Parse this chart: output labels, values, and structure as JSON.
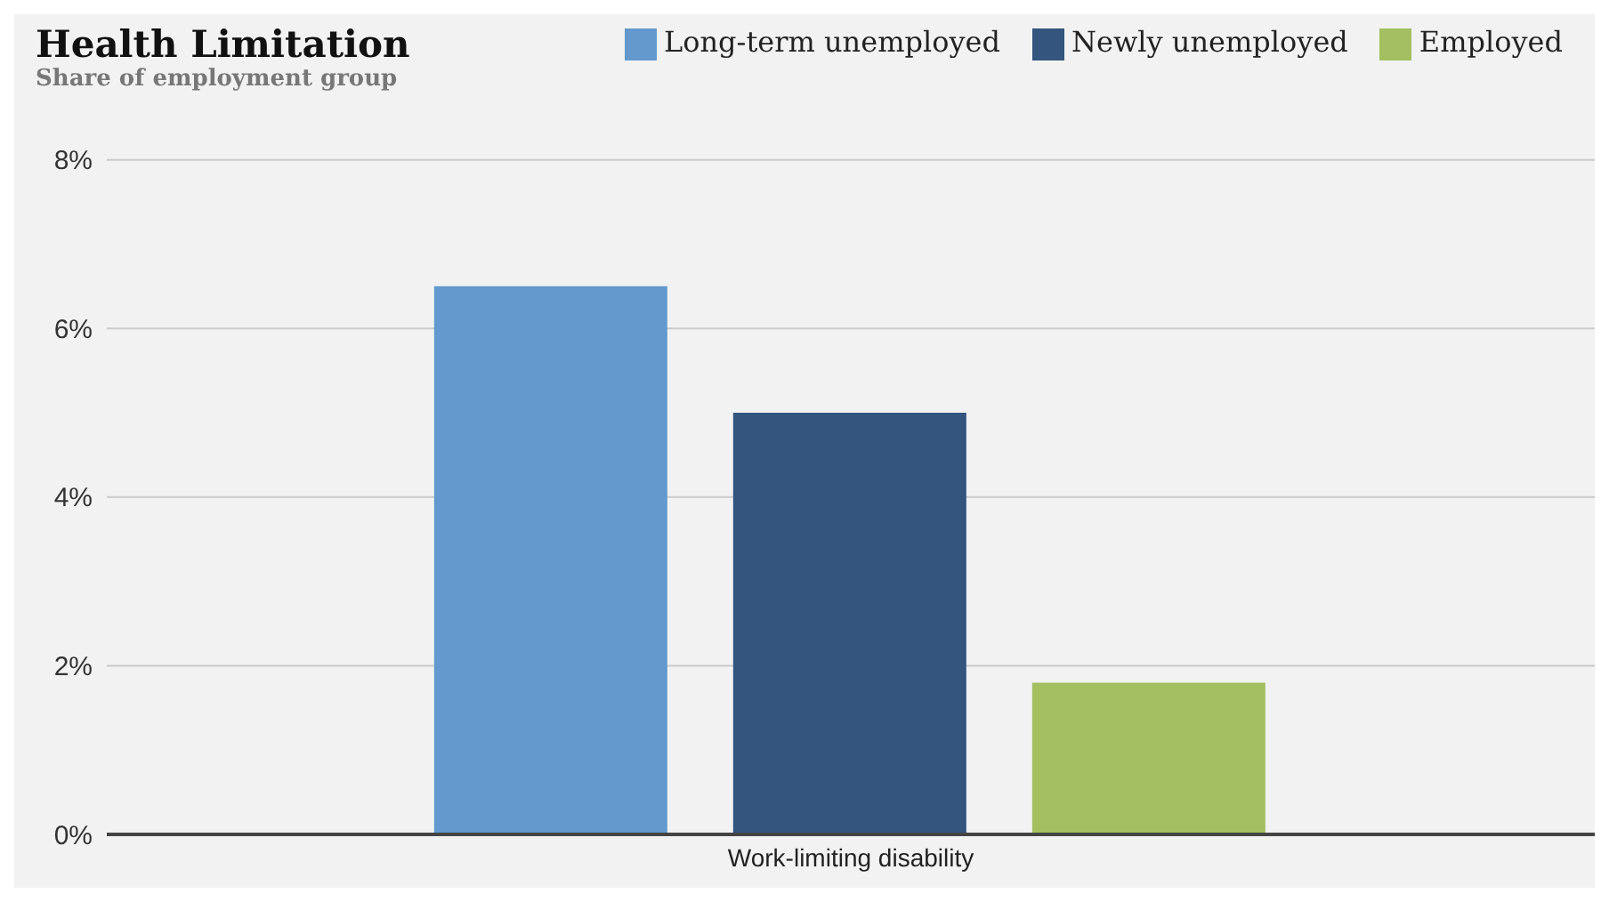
{
  "chart_data": {
    "type": "bar",
    "title": "Health Limitation",
    "subtitle": "Share of employment group",
    "categories": [
      "Work-limiting disability"
    ],
    "series": [
      {
        "name": "Long-term unemployed",
        "color": "#6399cc",
        "values": [
          6.5
        ]
      },
      {
        "name": "Newly unemployed",
        "color": "#33557e",
        "values": [
          5.0
        ]
      },
      {
        "name": "Employed",
        "color": "#a3bf60",
        "values": [
          1.8
        ]
      }
    ],
    "ylim": [
      0,
      8
    ],
    "yticks": [
      {
        "value": 0,
        "label": "0%"
      },
      {
        "value": 2,
        "label": "2%"
      },
      {
        "value": 4,
        "label": "4%"
      },
      {
        "value": 6,
        "label": "6%"
      },
      {
        "value": 8,
        "label": "8%"
      }
    ],
    "grid": "y",
    "legend": "top right"
  }
}
